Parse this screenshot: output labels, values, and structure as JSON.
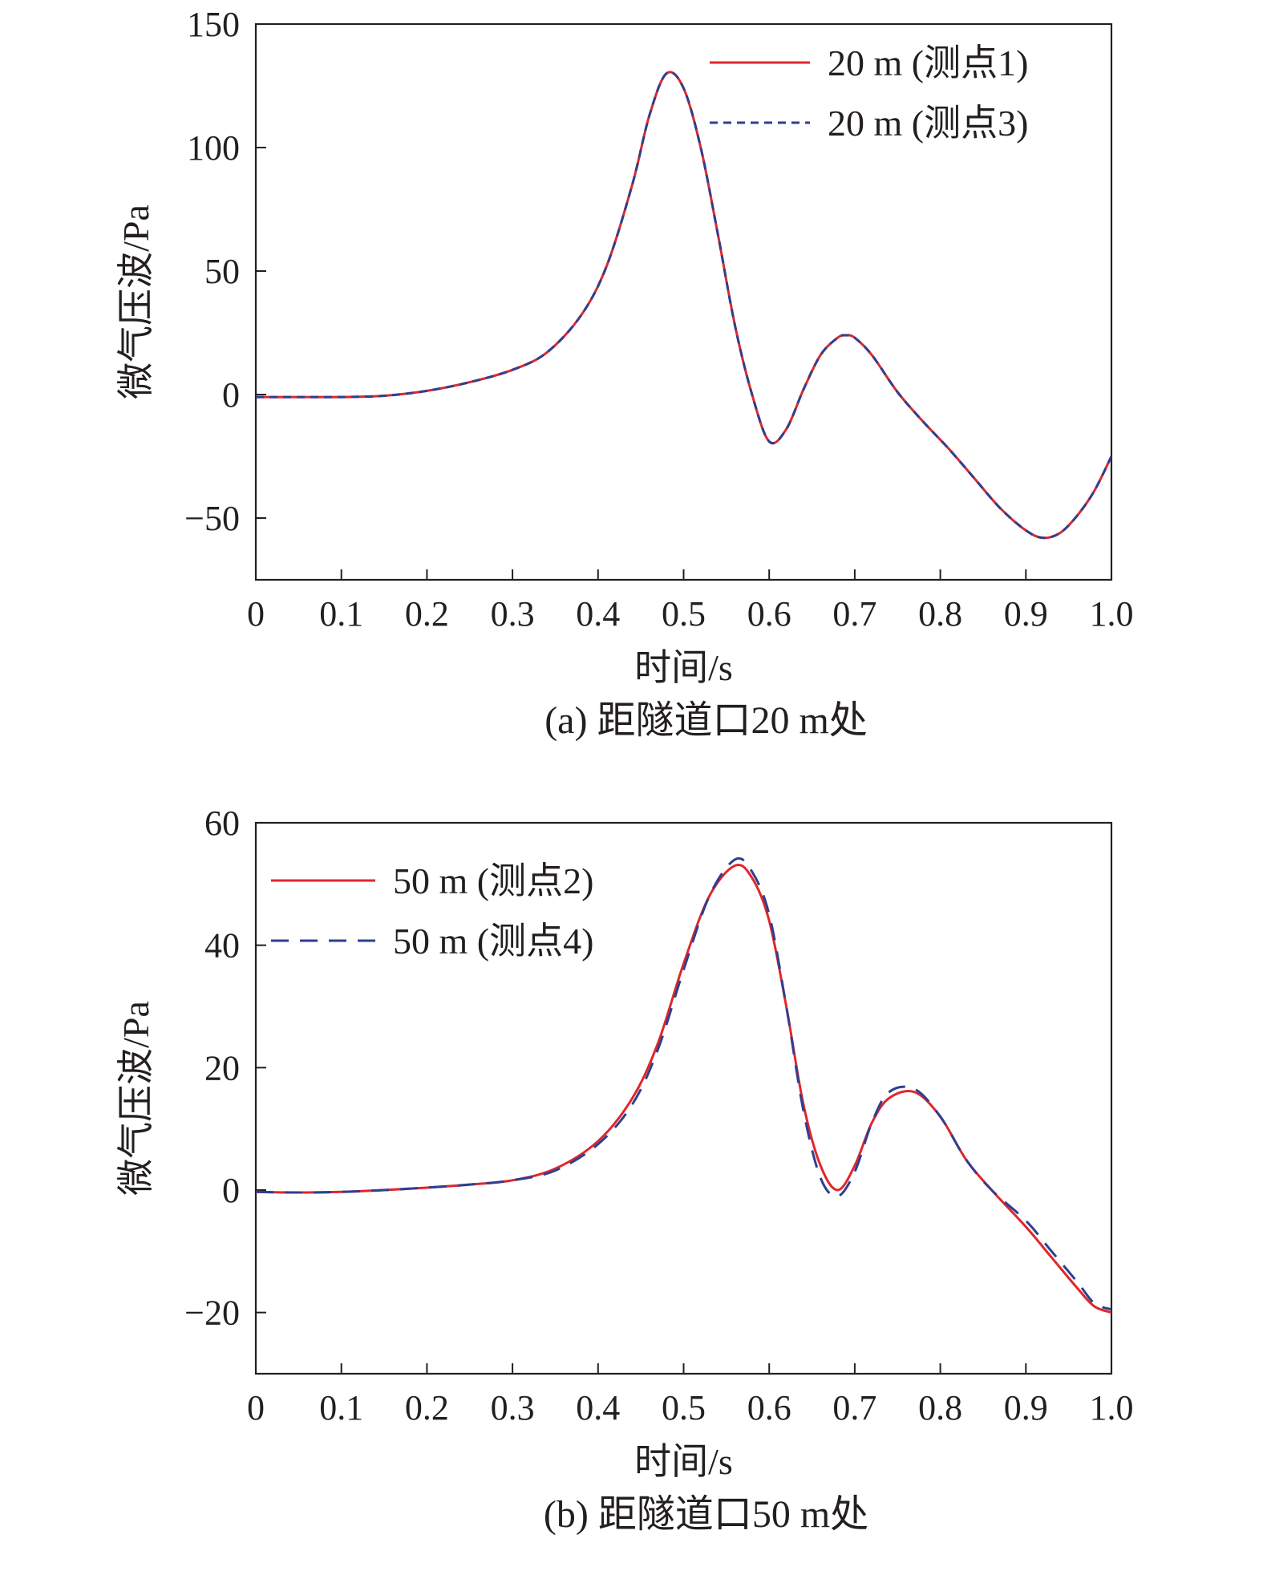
{
  "chart_data": [
    {
      "type": "line",
      "caption": "(a) 距隧道口20 m处",
      "xlabel": "时间/s",
      "ylabel": "微气压波/Pa",
      "xlim": [
        0,
        1.0
      ],
      "ylim": [
        -75,
        150
      ],
      "xticks": [
        0,
        0.1,
        0.2,
        0.3,
        0.4,
        0.5,
        0.6,
        0.7,
        0.8,
        0.9,
        1.0
      ],
      "xtick_labels": [
        "0",
        "0.1",
        "0.2",
        "0.3",
        "0.4",
        "0.5",
        "0.6",
        "0.7",
        "0.8",
        "0.9",
        "1.0"
      ],
      "yticks": [
        -50,
        0,
        50,
        100,
        150
      ],
      "ytick_labels": [
        "−50",
        "0",
        "50",
        "100",
        "150"
      ],
      "legend_position": "top-right",
      "grid": false,
      "series": [
        {
          "name": "20 m (测点1)",
          "color": "#e0262b",
          "dash": "solid",
          "x": [
            0,
            0.05,
            0.1,
            0.15,
            0.2,
            0.25,
            0.3,
            0.34,
            0.38,
            0.41,
            0.44,
            0.46,
            0.48,
            0.5,
            0.52,
            0.54,
            0.56,
            0.58,
            0.6,
            0.62,
            0.64,
            0.66,
            0.68,
            0.69,
            0.7,
            0.72,
            0.75,
            0.78,
            0.81,
            0.84,
            0.87,
            0.9,
            0.92,
            0.94,
            0.96,
            0.98,
            1.0
          ],
          "y": [
            -1,
            -1,
            -1,
            -0.5,
            1.5,
            5,
            10,
            17,
            32,
            52,
            85,
            113,
            130,
            124,
            100,
            65,
            28,
            0,
            -19,
            -14,
            2,
            16,
            23,
            24,
            23,
            16,
            1,
            -11,
            -22,
            -34,
            -46,
            -55,
            -58,
            -56,
            -49,
            -39,
            -25
          ]
        },
        {
          "name": "20 m (测点3)",
          "color": "#2f3f8f",
          "dash": "short-dash",
          "x": [
            0,
            0.05,
            0.1,
            0.15,
            0.2,
            0.25,
            0.3,
            0.34,
            0.38,
            0.41,
            0.44,
            0.46,
            0.48,
            0.5,
            0.52,
            0.54,
            0.56,
            0.58,
            0.6,
            0.62,
            0.64,
            0.66,
            0.68,
            0.69,
            0.7,
            0.72,
            0.75,
            0.78,
            0.81,
            0.84,
            0.87,
            0.9,
            0.92,
            0.94,
            0.96,
            0.98,
            1.0
          ],
          "y": [
            -1,
            -1,
            -1,
            -0.5,
            1.5,
            5,
            10,
            17,
            32,
            52,
            85,
            113,
            130,
            124,
            100,
            65,
            28,
            0,
            -19,
            -14,
            2,
            16,
            23,
            24,
            23,
            16,
            1,
            -11,
            -22,
            -34,
            -46,
            -55,
            -58,
            -56,
            -49,
            -39,
            -25
          ]
        }
      ]
    },
    {
      "type": "line",
      "caption": "(b) 距隧道口50 m处",
      "xlabel": "时间/s",
      "ylabel": "微气压波/Pa",
      "xlim": [
        0,
        1.0
      ],
      "ylim": [
        -30,
        60
      ],
      "xticks": [
        0,
        0.1,
        0.2,
        0.3,
        0.4,
        0.5,
        0.6,
        0.7,
        0.8,
        0.9,
        1.0
      ],
      "xtick_labels": [
        "0",
        "0.1",
        "0.2",
        "0.3",
        "0.4",
        "0.5",
        "0.6",
        "0.7",
        "0.8",
        "0.9",
        "1.0"
      ],
      "yticks": [
        -20,
        0,
        20,
        40,
        60
      ],
      "ytick_labels": [
        "−20",
        "0",
        "20",
        "40",
        "60"
      ],
      "legend_position": "top-left",
      "grid": false,
      "series": [
        {
          "name": "50 m (测点2)",
          "color": "#e0262b",
          "dash": "solid",
          "x": [
            0,
            0.05,
            0.1,
            0.15,
            0.2,
            0.25,
            0.3,
            0.35,
            0.4,
            0.44,
            0.47,
            0.5,
            0.53,
            0.56,
            0.58,
            0.6,
            0.62,
            0.64,
            0.66,
            0.68,
            0.7,
            0.72,
            0.74,
            0.77,
            0.8,
            0.83,
            0.86,
            0.9,
            0.93,
            0.96,
            0.98,
            1.0
          ],
          "y": [
            -0.3,
            -0.4,
            -0.3,
            0,
            0.4,
            0.9,
            1.6,
            3.5,
            8,
            15,
            24,
            37,
            48,
            53,
            51,
            44,
            30,
            14,
            4,
            0,
            4,
            11,
            15,
            16,
            12,
            5,
            0,
            -6,
            -11,
            -16,
            -19,
            -20
          ]
        },
        {
          "name": "50 m (测点4)",
          "color": "#2f3f8f",
          "dash": "long-dash",
          "x": [
            0,
            0.05,
            0.1,
            0.15,
            0.2,
            0.25,
            0.3,
            0.35,
            0.4,
            0.44,
            0.47,
            0.5,
            0.53,
            0.56,
            0.58,
            0.6,
            0.62,
            0.64,
            0.66,
            0.68,
            0.7,
            0.72,
            0.74,
            0.77,
            0.8,
            0.83,
            0.86,
            0.9,
            0.93,
            0.96,
            0.98,
            1.0
          ],
          "y": [
            -0.3,
            -0.4,
            -0.3,
            0,
            0.4,
            0.9,
            1.6,
            3.2,
            7.5,
            14,
            23,
            36,
            48,
            54,
            52,
            45,
            30,
            13,
            2,
            -1,
            3,
            11,
            16,
            16.5,
            12,
            5,
            0,
            -5,
            -10,
            -15,
            -18.5,
            -19.5
          ]
        }
      ]
    }
  ]
}
